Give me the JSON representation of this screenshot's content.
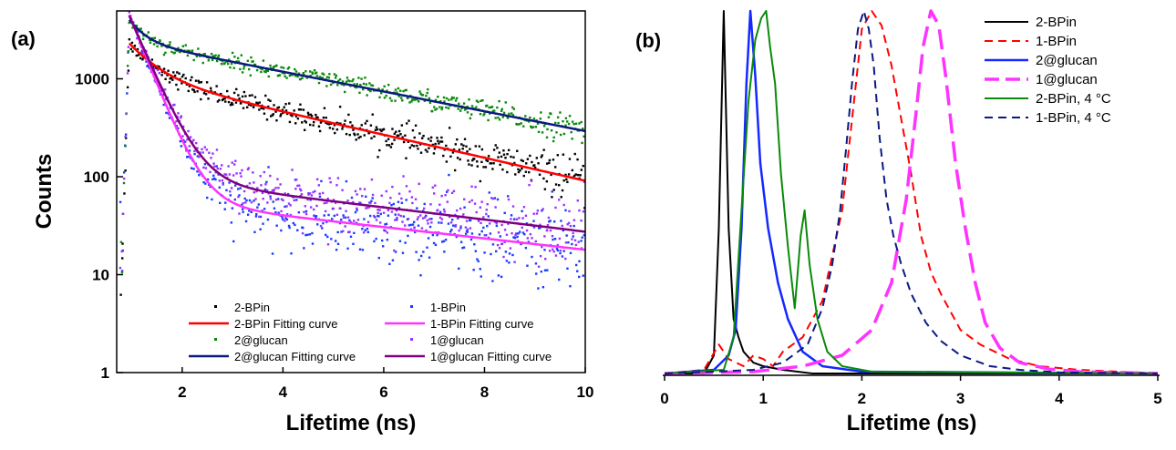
{
  "chart_data": [
    {
      "type": "scatter",
      "panel_label": "(a)",
      "xlabel": "Lifetime (ns)",
      "ylabel": "Counts",
      "xlim": [
        0.7,
        10
      ],
      "ylim": [
        1,
        5000
      ],
      "y_scale": "log",
      "x_ticks": [
        "2",
        "4",
        "6",
        "8",
        "10"
      ],
      "y_ticks": [
        "1",
        "10",
        "100",
        "1000"
      ],
      "legend_position": "bottom-right",
      "series": [
        {
          "name": "2-BPin",
          "kind": "points",
          "color": "#000000",
          "peak": 2300,
          "fit": {
            "A": 1250,
            "t1": 0.5,
            "B": 1050,
            "t2": 3.7
          }
        },
        {
          "name": "2-BPin Fitting curve",
          "kind": "line",
          "color": "#ff0000",
          "fit": {
            "A": 1250,
            "t1": 0.5,
            "B": 1050,
            "t2": 3.7
          }
        },
        {
          "name": "1-BPin",
          "kind": "points",
          "color": "#1a3cff",
          "peak": 4500,
          "fit": {
            "A": 4450,
            "t1": 0.33,
            "B": 60,
            "t2": 7.5
          }
        },
        {
          "name": "1-BPin Fitting curve",
          "kind": "line",
          "color": "#ff33ff",
          "fit": {
            "A": 4450,
            "t1": 0.33,
            "B": 60,
            "t2": 7.5
          }
        },
        {
          "name": "2@glucan",
          "kind": "points",
          "color": "#0a8a0a",
          "peak": 4300,
          "fit": {
            "A": 1600,
            "t1": 0.3,
            "B": 2400,
            "t2": 4.3
          }
        },
        {
          "name": "2@glucan Fitting curve",
          "kind": "line",
          "color": "#0a1a80",
          "fit": {
            "A": 1600,
            "t1": 0.3,
            "B": 2400,
            "t2": 4.3
          }
        },
        {
          "name": "1@glucan",
          "kind": "points",
          "color": "#9933ff",
          "peak": 4400,
          "fit": {
            "A": 4300,
            "t1": 0.36,
            "B": 100,
            "t2": 7.0
          }
        },
        {
          "name": "1@glucan Fitting curve",
          "kind": "line",
          "color": "#800080",
          "fit": {
            "A": 4300,
            "t1": 0.36,
            "B": 100,
            "t2": 7.0
          }
        }
      ]
    },
    {
      "type": "line",
      "panel_label": "(b)",
      "xlabel": "Lifetime (ns)",
      "ylabel": "",
      "xlim": [
        0,
        5
      ],
      "ylim": [
        0,
        1
      ],
      "x_ticks": [
        "0",
        "1",
        "2",
        "3",
        "4",
        "5"
      ],
      "legend_position": "top-right",
      "series": [
        {
          "name": "2-BPin",
          "color": "#000000",
          "dash": "solid",
          "width": 2,
          "x": [
            0,
            0.4,
            0.5,
            0.55,
            0.6,
            0.65,
            0.7,
            0.75,
            0.8,
            0.9,
            1.0,
            1.2,
            1.5,
            5
          ],
          "y": [
            0,
            0,
            0.05,
            0.4,
            1.0,
            0.4,
            0.15,
            0.1,
            0.06,
            0.03,
            0.02,
            0.01,
            0,
            0
          ]
        },
        {
          "name": "1-BPin",
          "color": "#ff0000",
          "dash": "dash-short",
          "width": 2,
          "x": [
            0,
            0.4,
            0.55,
            0.65,
            0.8,
            0.9,
            1.0,
            1.1,
            1.2,
            1.4,
            1.6,
            1.8,
            1.9,
            2.0,
            2.1,
            2.2,
            2.3,
            2.4,
            2.5,
            2.6,
            2.7,
            2.8,
            3.0,
            3.2,
            3.5,
            3.8,
            4.2,
            5
          ],
          "y": [
            0,
            0.01,
            0.08,
            0.04,
            0.02,
            0.05,
            0.04,
            0.02,
            0.06,
            0.1,
            0.2,
            0.45,
            0.7,
            0.95,
            1.0,
            0.96,
            0.85,
            0.7,
            0.55,
            0.38,
            0.28,
            0.22,
            0.12,
            0.08,
            0.04,
            0.02,
            0.01,
            0
          ]
        },
        {
          "name": "2@glucan",
          "color": "#1428ff",
          "dash": "solid",
          "width": 2.5,
          "x": [
            0,
            0.5,
            0.65,
            0.72,
            0.78,
            0.83,
            0.87,
            0.92,
            0.97,
            1.05,
            1.15,
            1.25,
            1.4,
            1.6,
            2.0,
            5
          ],
          "y": [
            0,
            0.01,
            0.05,
            0.12,
            0.4,
            0.8,
            1.0,
            0.82,
            0.58,
            0.4,
            0.25,
            0.15,
            0.06,
            0.02,
            0.005,
            0
          ]
        },
        {
          "name": "1@glucan",
          "color": "#ff33ff",
          "dash": "dash-long",
          "width": 3.5,
          "x": [
            0,
            0.9,
            1.4,
            1.8,
            2.1,
            2.3,
            2.45,
            2.55,
            2.62,
            2.7,
            2.78,
            2.85,
            2.95,
            3.05,
            3.15,
            3.25,
            3.4,
            3.6,
            3.9,
            4.2,
            5
          ],
          "y": [
            0,
            0.005,
            0.02,
            0.05,
            0.12,
            0.25,
            0.48,
            0.72,
            0.9,
            1.0,
            0.96,
            0.82,
            0.58,
            0.4,
            0.25,
            0.14,
            0.07,
            0.03,
            0.012,
            0.005,
            0
          ]
        },
        {
          "name": "2-BPin, 4 °C",
          "color": "#0a8a0a",
          "dash": "solid",
          "width": 2,
          "x": [
            0,
            0.6,
            0.7,
            0.78,
            0.85,
            0.92,
            0.98,
            1.03,
            1.07,
            1.12,
            1.18,
            1.25,
            1.32,
            1.38,
            1.42,
            1.47,
            1.55,
            1.65,
            1.8,
            2.1,
            5
          ],
          "y": [
            0,
            0.01,
            0.1,
            0.45,
            0.75,
            0.92,
            0.98,
            1.0,
            0.9,
            0.8,
            0.55,
            0.35,
            0.18,
            0.38,
            0.45,
            0.3,
            0.15,
            0.06,
            0.02,
            0.005,
            0
          ]
        },
        {
          "name": "1-BPin, 4 °C",
          "color": "#0a1a80",
          "dash": "dash-short",
          "width": 2,
          "x": [
            0,
            0.5,
            0.9,
            1.2,
            1.45,
            1.6,
            1.7,
            1.78,
            1.84,
            1.9,
            1.96,
            2.02,
            2.07,
            2.12,
            2.18,
            2.25,
            2.32,
            2.4,
            2.5,
            2.65,
            2.8,
            3.0,
            3.3,
            3.6,
            4.0,
            5
          ],
          "y": [
            0,
            0.005,
            0.01,
            0.03,
            0.08,
            0.18,
            0.3,
            0.45,
            0.62,
            0.8,
            0.95,
            1.0,
            0.95,
            0.85,
            0.65,
            0.48,
            0.38,
            0.3,
            0.22,
            0.14,
            0.09,
            0.05,
            0.02,
            0.01,
            0.003,
            0
          ]
        }
      ]
    }
  ]
}
